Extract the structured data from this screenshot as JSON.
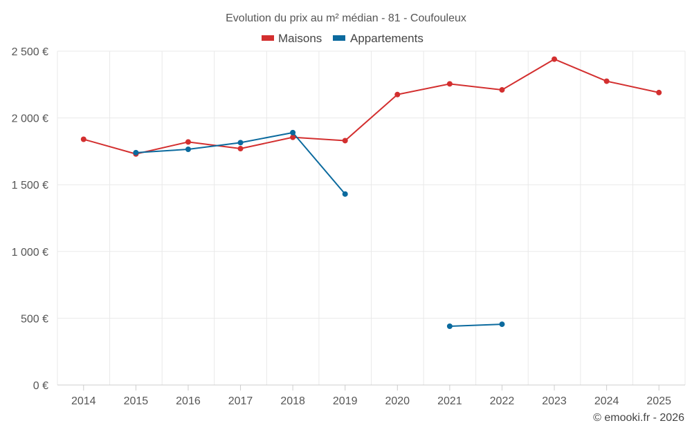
{
  "chart_data": {
    "type": "line",
    "title": "Evolution du prix au m² médian - 81 - Coufouleux",
    "categories": [
      "2014",
      "2015",
      "2016",
      "2017",
      "2018",
      "2019",
      "2020",
      "2021",
      "2022",
      "2023",
      "2024",
      "2025"
    ],
    "ylim": [
      0,
      2500
    ],
    "yticks": [
      0,
      500,
      1000,
      1500,
      2000,
      2500
    ],
    "ytick_labels": [
      "0 €",
      "500 €",
      "1 000 €",
      "1 500 €",
      "2 000 €",
      "2 500 €"
    ],
    "grid": true,
    "legend_position": "top-center",
    "series": [
      {
        "name": "Maisons",
        "color": "#d32f2f",
        "values": [
          1840,
          1730,
          1820,
          1770,
          1855,
          1830,
          2175,
          2255,
          2210,
          2440,
          2275,
          2190
        ]
      },
      {
        "name": "Appartements",
        "color": "#0b6a9e",
        "values": [
          null,
          1740,
          1765,
          1815,
          1890,
          1430,
          null,
          440,
          455,
          null,
          null,
          null
        ]
      }
    ],
    "credit": "© emooki.fr - 2026"
  }
}
